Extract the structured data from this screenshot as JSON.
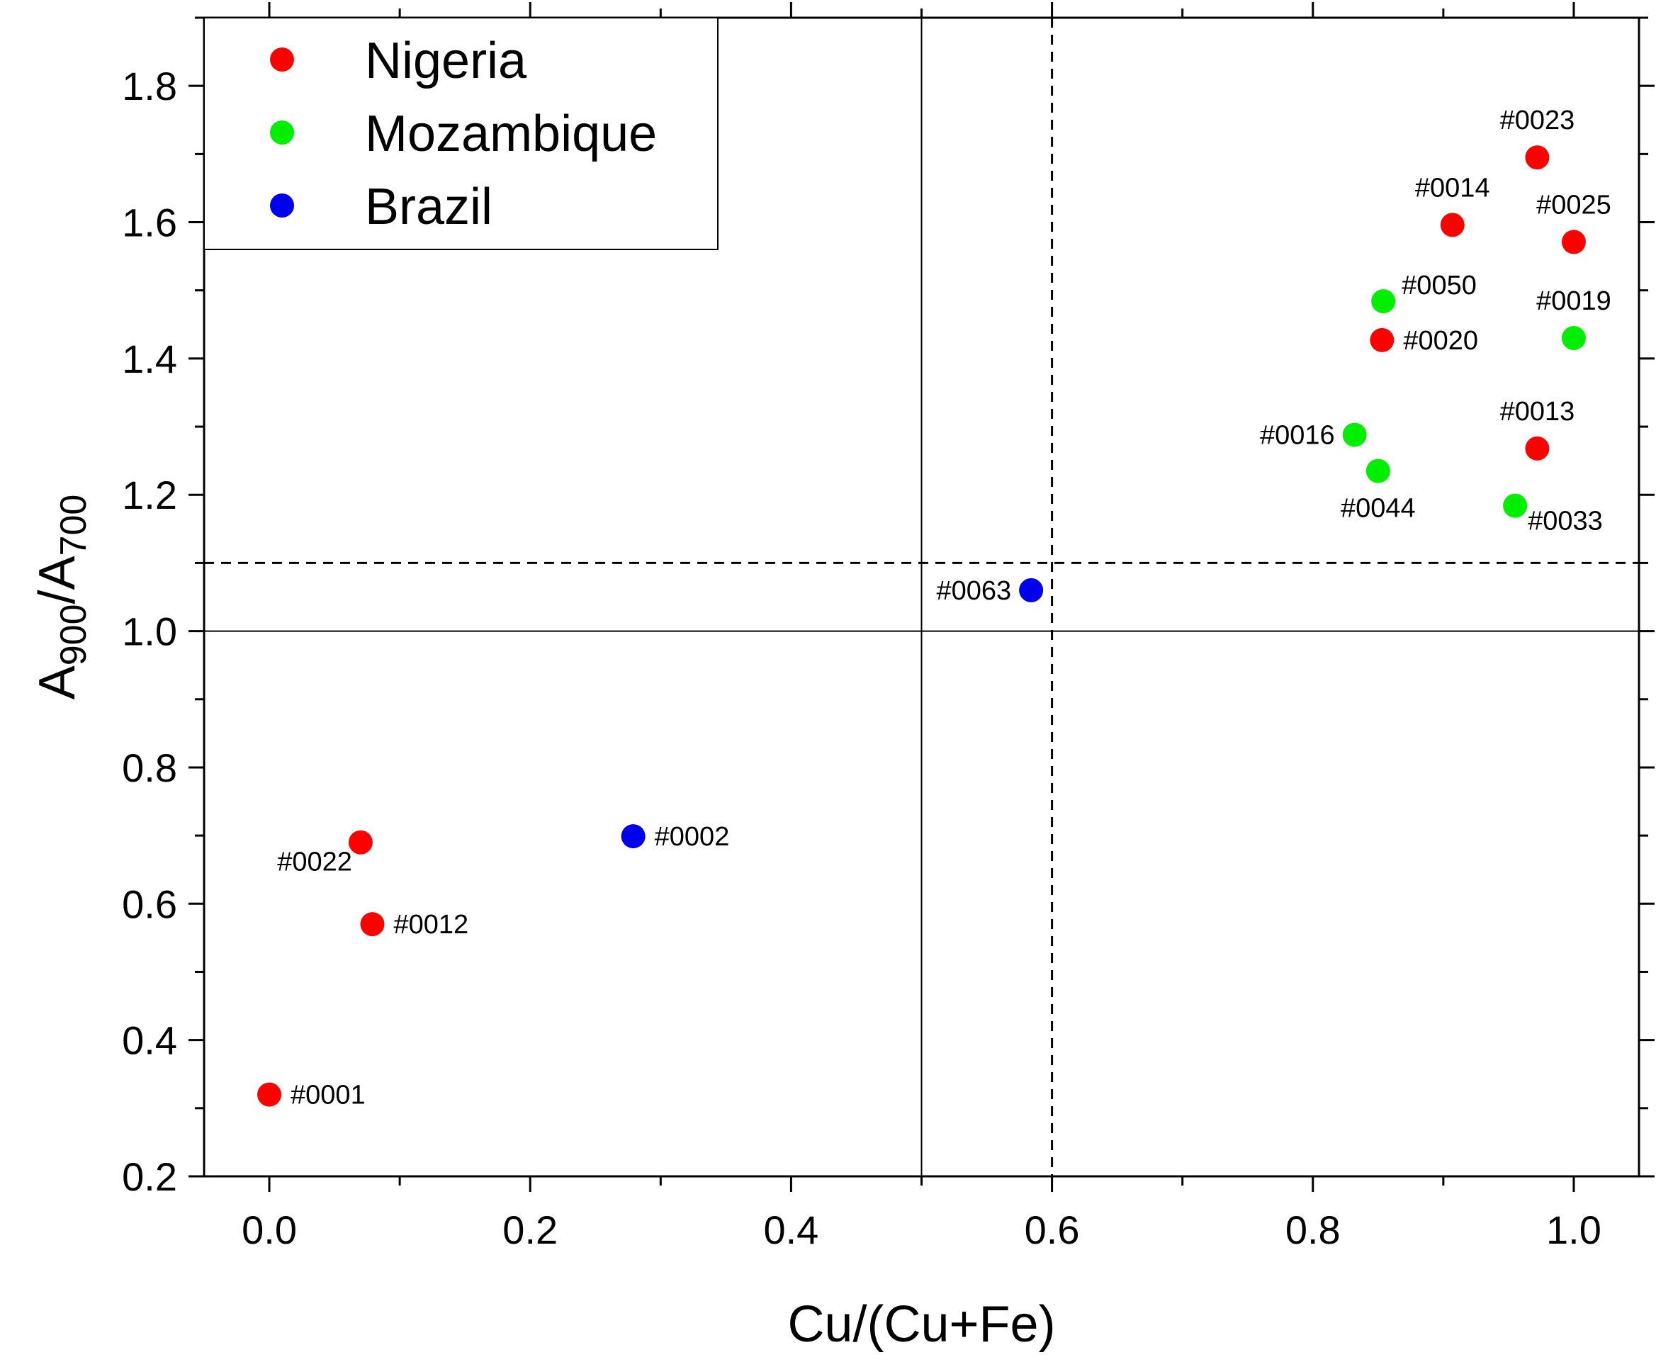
{
  "chart_data": {
    "type": "scatter",
    "title": "",
    "xlabel": "Cu/(Cu+Fe)",
    "ylabel": {
      "base": "A",
      "sub1": "900",
      "sep": "/A",
      "sub2": "700"
    },
    "xlim": [
      -0.05,
      1.05
    ],
    "ylim": [
      0.2,
      1.9
    ],
    "x_ticks": [
      0.0,
      0.2,
      0.4,
      0.6,
      0.8,
      1.0
    ],
    "x_tick_labels": [
      "0.0",
      "0.2",
      "0.4",
      "0.6",
      "0.8",
      "1.0"
    ],
    "y_ticks": [
      0.2,
      0.4,
      0.6,
      0.8,
      1.0,
      1.2,
      1.4,
      1.6,
      1.8
    ],
    "y_tick_labels": [
      "0.2",
      "0.4",
      "0.6",
      "0.8",
      "1.0",
      "1.2",
      "1.4",
      "1.6",
      "1.8"
    ],
    "grid": false,
    "legend_position": "top-left",
    "reference_lines": [
      {
        "axis": "x",
        "value": 0.5,
        "style": "solid"
      },
      {
        "axis": "x",
        "value": 0.6,
        "style": "dashed"
      },
      {
        "axis": "y",
        "value": 1.0,
        "style": "solid"
      },
      {
        "axis": "y",
        "value": 1.1,
        "style": "dashed"
      }
    ],
    "series": [
      {
        "name": "Nigeria",
        "color": "#ff0000",
        "points": [
          {
            "id": "#0023",
            "x": 0.972,
            "y": 1.695,
            "label_side": "above"
          },
          {
            "id": "#0014",
            "x": 0.907,
            "y": 1.596,
            "label_side": "above"
          },
          {
            "id": "#0025",
            "x": 1.0,
            "y": 1.571,
            "label_side": "above"
          },
          {
            "id": "#0020",
            "x": 0.853,
            "y": 1.427,
            "label_side": "right"
          },
          {
            "id": "#0013",
            "x": 0.972,
            "y": 1.268,
            "label_side": "above"
          },
          {
            "id": "#0022",
            "x": 0.07,
            "y": 0.69,
            "label_side": "below-left"
          },
          {
            "id": "#0012",
            "x": 0.079,
            "y": 0.57,
            "label_side": "right"
          },
          {
            "id": "#0001",
            "x": 0.0,
            "y": 0.32,
            "label_side": "right"
          }
        ]
      },
      {
        "name": "Mozambique",
        "color": "#00ee00",
        "points": [
          {
            "id": "#0050",
            "x": 0.854,
            "y": 1.484,
            "label_side": "upper-right"
          },
          {
            "id": "#0019",
            "x": 1.0,
            "y": 1.43,
            "label_side": "above"
          },
          {
            "id": "#0016",
            "x": 0.832,
            "y": 1.288,
            "label_side": "left"
          },
          {
            "id": "#0044",
            "x": 0.85,
            "y": 1.235,
            "label_side": "below"
          },
          {
            "id": "#0033",
            "x": 0.955,
            "y": 1.184,
            "label_side": "lower-right"
          }
        ]
      },
      {
        "name": "Brazil",
        "color": "#0000ee",
        "points": [
          {
            "id": "#0063",
            "x": 0.584,
            "y": 1.06,
            "label_side": "left"
          },
          {
            "id": "#0002",
            "x": 0.279,
            "y": 0.699,
            "label_side": "right"
          }
        ]
      }
    ]
  }
}
